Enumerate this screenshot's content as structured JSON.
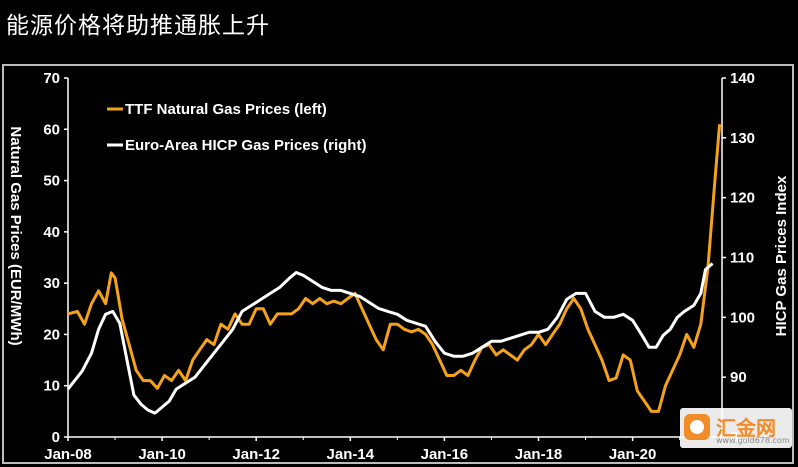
{
  "title": "能源价格将助推通胀上升",
  "chart_data": {
    "type": "line",
    "title": "能源价格将助推通胀上升",
    "xlabel": "",
    "ylabel_left": "Natural Gas Prices (EUR/MWh)",
    "ylabel_right": "HICP Gas Prices Index",
    "x_ticks": [
      "Jan-08",
      "Jan-10",
      "Jan-12",
      "Jan-14",
      "Jan-16",
      "Jan-18",
      "Jan-20"
    ],
    "y_left_ticks": [
      0,
      10,
      20,
      30,
      40,
      50,
      60,
      70
    ],
    "y_right_ticks": [
      80,
      90,
      100,
      110,
      120,
      130,
      140
    ],
    "ylim_left": [
      0,
      70
    ],
    "ylim_right": [
      80,
      140
    ],
    "xlim": [
      2008.0,
      2021.9
    ],
    "grid": false,
    "legend_position": "top-left",
    "series": [
      {
        "name": "TTF Natural Gas Prices (left)",
        "axis": "left",
        "color": "#f5a21b",
        "points": [
          [
            2008.0,
            24
          ],
          [
            2008.2,
            24.5
          ],
          [
            2008.35,
            22
          ],
          [
            2008.5,
            26
          ],
          [
            2008.65,
            28.5
          ],
          [
            2008.8,
            26
          ],
          [
            2008.92,
            32
          ],
          [
            2009.0,
            31
          ],
          [
            2009.15,
            23
          ],
          [
            2009.3,
            18
          ],
          [
            2009.45,
            13
          ],
          [
            2009.6,
            11
          ],
          [
            2009.75,
            11
          ],
          [
            2009.9,
            9.5
          ],
          [
            2010.05,
            12
          ],
          [
            2010.2,
            11
          ],
          [
            2010.35,
            13
          ],
          [
            2010.5,
            11
          ],
          [
            2010.65,
            15
          ],
          [
            2010.8,
            17
          ],
          [
            2010.95,
            19
          ],
          [
            2011.1,
            18
          ],
          [
            2011.25,
            22
          ],
          [
            2011.4,
            21
          ],
          [
            2011.55,
            24
          ],
          [
            2011.7,
            22
          ],
          [
            2011.85,
            22
          ],
          [
            2012.0,
            25
          ],
          [
            2012.15,
            25
          ],
          [
            2012.3,
            22
          ],
          [
            2012.45,
            24
          ],
          [
            2012.6,
            24
          ],
          [
            2012.75,
            24
          ],
          [
            2012.9,
            25
          ],
          [
            2013.05,
            27
          ],
          [
            2013.2,
            26
          ],
          [
            2013.35,
            27
          ],
          [
            2013.5,
            26
          ],
          [
            2013.65,
            26.5
          ],
          [
            2013.8,
            26
          ],
          [
            2013.95,
            27
          ],
          [
            2014.1,
            28
          ],
          [
            2014.25,
            25
          ],
          [
            2014.4,
            22
          ],
          [
            2014.55,
            19
          ],
          [
            2014.7,
            17
          ],
          [
            2014.85,
            22
          ],
          [
            2015.0,
            22
          ],
          [
            2015.15,
            21
          ],
          [
            2015.3,
            20.5
          ],
          [
            2015.45,
            21
          ],
          [
            2015.6,
            20
          ],
          [
            2015.75,
            18
          ],
          [
            2015.9,
            15
          ],
          [
            2016.05,
            12
          ],
          [
            2016.2,
            12
          ],
          [
            2016.35,
            13
          ],
          [
            2016.5,
            12
          ],
          [
            2016.65,
            15
          ],
          [
            2016.8,
            17.5
          ],
          [
            2016.95,
            18
          ],
          [
            2017.1,
            16
          ],
          [
            2017.25,
            17
          ],
          [
            2017.4,
            16
          ],
          [
            2017.55,
            15
          ],
          [
            2017.7,
            17
          ],
          [
            2017.85,
            18
          ],
          [
            2018.0,
            20
          ],
          [
            2018.15,
            18
          ],
          [
            2018.3,
            20
          ],
          [
            2018.45,
            22
          ],
          [
            2018.6,
            25
          ],
          [
            2018.75,
            27
          ],
          [
            2018.9,
            25
          ],
          [
            2019.05,
            21
          ],
          [
            2019.2,
            18
          ],
          [
            2019.35,
            15
          ],
          [
            2019.5,
            11
          ],
          [
            2019.65,
            11.5
          ],
          [
            2019.8,
            16
          ],
          [
            2019.95,
            15
          ],
          [
            2020.1,
            9
          ],
          [
            2020.25,
            7
          ],
          [
            2020.4,
            5
          ],
          [
            2020.55,
            5
          ],
          [
            2020.7,
            10
          ],
          [
            2020.85,
            13
          ],
          [
            2021.0,
            16
          ],
          [
            2021.15,
            20
          ],
          [
            2021.3,
            17.5
          ],
          [
            2021.45,
            22
          ],
          [
            2021.6,
            33
          ],
          [
            2021.75,
            50
          ],
          [
            2021.85,
            61
          ]
        ]
      },
      {
        "name": "Euro-Area HICP Gas Prices (right)",
        "axis": "right",
        "color": "#ffffff",
        "points": [
          [
            2008.0,
            88
          ],
          [
            2008.1,
            89
          ],
          [
            2008.3,
            91
          ],
          [
            2008.5,
            94
          ],
          [
            2008.65,
            98
          ],
          [
            2008.8,
            100.5
          ],
          [
            2008.95,
            101
          ],
          [
            2009.1,
            99
          ],
          [
            2009.25,
            93
          ],
          [
            2009.4,
            87
          ],
          [
            2009.55,
            85.5
          ],
          [
            2009.7,
            84.5
          ],
          [
            2009.85,
            84
          ],
          [
            2010.0,
            85
          ],
          [
            2010.15,
            86
          ],
          [
            2010.3,
            88
          ],
          [
            2010.5,
            89
          ],
          [
            2010.7,
            90
          ],
          [
            2010.9,
            92
          ],
          [
            2011.1,
            94
          ],
          [
            2011.3,
            96
          ],
          [
            2011.5,
            98
          ],
          [
            2011.7,
            101
          ],
          [
            2011.9,
            102
          ],
          [
            2012.1,
            103
          ],
          [
            2012.3,
            104
          ],
          [
            2012.5,
            105
          ],
          [
            2012.7,
            106.5
          ],
          [
            2012.85,
            107.5
          ],
          [
            2013.0,
            107
          ],
          [
            2013.2,
            106
          ],
          [
            2013.4,
            105
          ],
          [
            2013.6,
            104.5
          ],
          [
            2013.8,
            104.5
          ],
          [
            2014.0,
            104
          ],
          [
            2014.2,
            103.5
          ],
          [
            2014.4,
            102.5
          ],
          [
            2014.6,
            101.5
          ],
          [
            2014.8,
            101
          ],
          [
            2015.0,
            100.5
          ],
          [
            2015.2,
            99.5
          ],
          [
            2015.4,
            99
          ],
          [
            2015.6,
            98.5
          ],
          [
            2015.8,
            96
          ],
          [
            2016.0,
            94
          ],
          [
            2016.2,
            93.5
          ],
          [
            2016.4,
            93.5
          ],
          [
            2016.6,
            94
          ],
          [
            2016.8,
            95
          ],
          [
            2017.0,
            96
          ],
          [
            2017.2,
            96
          ],
          [
            2017.4,
            96.5
          ],
          [
            2017.6,
            97
          ],
          [
            2017.8,
            97.5
          ],
          [
            2018.0,
            97.5
          ],
          [
            2018.2,
            98
          ],
          [
            2018.4,
            100
          ],
          [
            2018.6,
            103
          ],
          [
            2018.8,
            104
          ],
          [
            2019.0,
            104
          ],
          [
            2019.2,
            101
          ],
          [
            2019.4,
            100
          ],
          [
            2019.6,
            100
          ],
          [
            2019.8,
            100.5
          ],
          [
            2020.0,
            99.5
          ],
          [
            2020.2,
            97
          ],
          [
            2020.35,
            95
          ],
          [
            2020.5,
            95
          ],
          [
            2020.65,
            97
          ],
          [
            2020.8,
            98
          ],
          [
            2020.95,
            100
          ],
          [
            2021.1,
            101
          ],
          [
            2021.3,
            102
          ],
          [
            2021.45,
            104
          ],
          [
            2021.55,
            108
          ],
          [
            2021.7,
            109
          ]
        ]
      }
    ]
  },
  "watermark": {
    "brand": "汇金网",
    "url": "www.gold678.com"
  }
}
